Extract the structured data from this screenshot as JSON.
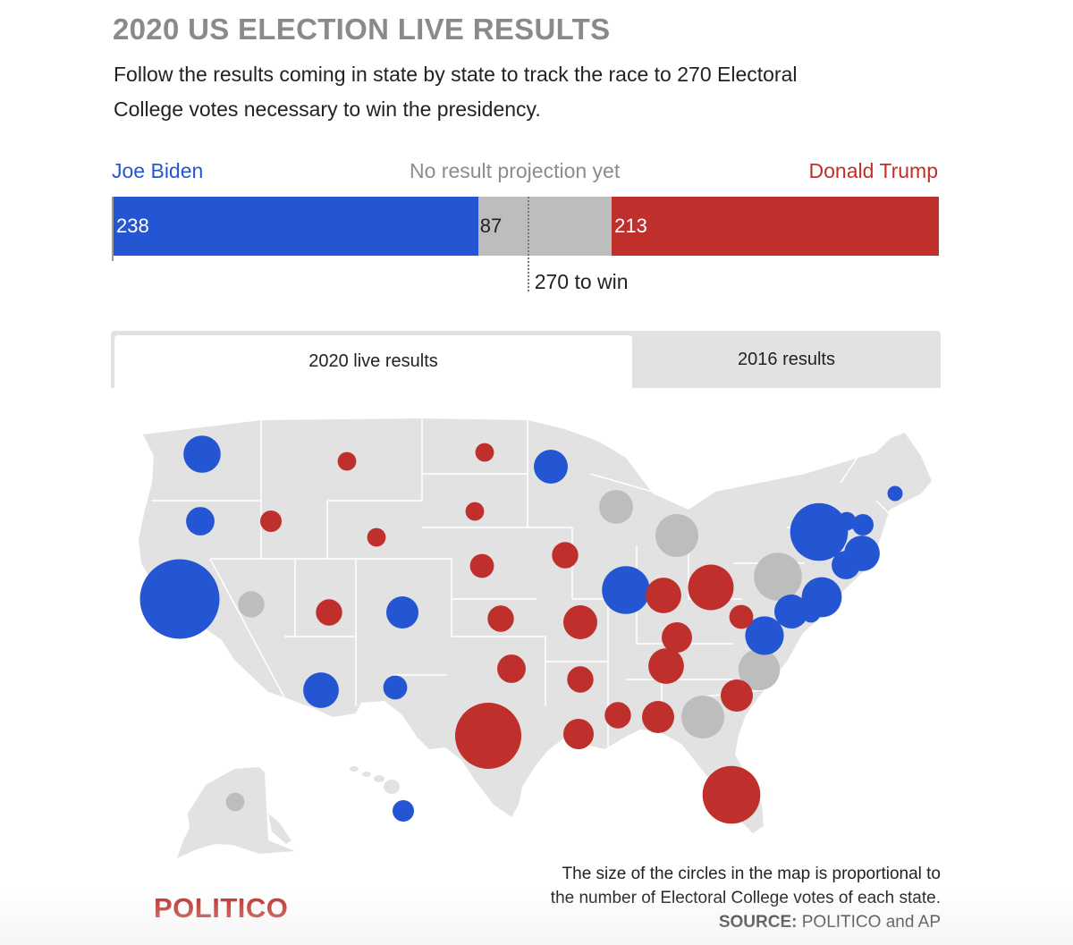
{
  "header": {
    "title": "2020 US ELECTION LIVE RESULTS",
    "subtitle_line1": "Follow the results coming in state by state to track the race to 270 Electoral",
    "subtitle_line2": "College votes necessary to win the presidency."
  },
  "tally": {
    "biden_label": "Joe Biden",
    "pending_label": "No result projection yet",
    "trump_label": "Donald Trump",
    "biden_votes": 238,
    "pending_votes": 87,
    "trump_votes": 213,
    "total_votes": 538,
    "win_threshold": 270,
    "win_label": "270 to win"
  },
  "tabs": {
    "live_label": "2020 live results",
    "past_label": "2016 results"
  },
  "colors": {
    "biden": "#2456d3",
    "trump": "#bf2f2b",
    "pending": "#bdbdbd",
    "land": "#e2e2e2",
    "border": "#ffffff"
  },
  "chart_data": {
    "type": "proportional-symbol-map",
    "title": "2020 US ELECTION LIVE RESULTS",
    "size_encoding": "Electoral College votes",
    "color_encoding": {
      "biden": "Joe Biden",
      "trump": "Donald Trump",
      "pending": "No result projection yet"
    },
    "states": [
      {
        "state": "WA",
        "ev": 12,
        "result": "biden"
      },
      {
        "state": "OR",
        "ev": 7,
        "result": "biden"
      },
      {
        "state": "CA",
        "ev": 55,
        "result": "biden"
      },
      {
        "state": "NV",
        "ev": 6,
        "result": "pending"
      },
      {
        "state": "ID",
        "ev": 4,
        "result": "trump"
      },
      {
        "state": "MT",
        "ev": 3,
        "result": "trump"
      },
      {
        "state": "WY",
        "ev": 3,
        "result": "trump"
      },
      {
        "state": "UT",
        "ev": 6,
        "result": "trump"
      },
      {
        "state": "CO",
        "ev": 9,
        "result": "biden"
      },
      {
        "state": "AZ",
        "ev": 11,
        "result": "biden"
      },
      {
        "state": "NM",
        "ev": 5,
        "result": "biden"
      },
      {
        "state": "ND",
        "ev": 3,
        "result": "trump"
      },
      {
        "state": "SD",
        "ev": 3,
        "result": "trump"
      },
      {
        "state": "NE",
        "ev": 5,
        "result": "trump"
      },
      {
        "state": "KS",
        "ev": 6,
        "result": "trump"
      },
      {
        "state": "OK",
        "ev": 7,
        "result": "trump"
      },
      {
        "state": "TX",
        "ev": 38,
        "result": "trump"
      },
      {
        "state": "MN",
        "ev": 10,
        "result": "biden"
      },
      {
        "state": "IA",
        "ev": 6,
        "result": "trump"
      },
      {
        "state": "MO",
        "ev": 10,
        "result": "trump"
      },
      {
        "state": "AR",
        "ev": 6,
        "result": "trump"
      },
      {
        "state": "LA",
        "ev": 8,
        "result": "trump"
      },
      {
        "state": "WI",
        "ev": 10,
        "result": "pending"
      },
      {
        "state": "IL",
        "ev": 20,
        "result": "biden"
      },
      {
        "state": "MI",
        "ev": 16,
        "result": "pending"
      },
      {
        "state": "IN",
        "ev": 11,
        "result": "trump"
      },
      {
        "state": "OH",
        "ev": 18,
        "result": "trump"
      },
      {
        "state": "KY",
        "ev": 8,
        "result": "trump"
      },
      {
        "state": "TN",
        "ev": 11,
        "result": "trump"
      },
      {
        "state": "MS",
        "ev": 6,
        "result": "trump"
      },
      {
        "state": "AL",
        "ev": 9,
        "result": "trump"
      },
      {
        "state": "GA",
        "ev": 16,
        "result": "pending"
      },
      {
        "state": "FL",
        "ev": 29,
        "result": "trump"
      },
      {
        "state": "SC",
        "ev": 9,
        "result": "trump"
      },
      {
        "state": "NC",
        "ev": 15,
        "result": "pending"
      },
      {
        "state": "VA",
        "ev": 13,
        "result": "biden"
      },
      {
        "state": "WV",
        "ev": 5,
        "result": "trump"
      },
      {
        "state": "PA",
        "ev": 20,
        "result": "pending"
      },
      {
        "state": "NY",
        "ev": 29,
        "result": "biden"
      },
      {
        "state": "NJ",
        "ev": 14,
        "result": "biden"
      },
      {
        "state": "MD",
        "ev": 10,
        "result": "biden"
      },
      {
        "state": "DE",
        "ev": 3,
        "result": "biden"
      },
      {
        "state": "CT",
        "ev": 7,
        "result": "biden"
      },
      {
        "state": "RI",
        "ev": 4,
        "result": "biden"
      },
      {
        "state": "MA",
        "ev": 11,
        "result": "biden"
      },
      {
        "state": "VT",
        "ev": 3,
        "result": "biden"
      },
      {
        "state": "NH",
        "ev": 4,
        "result": "biden"
      },
      {
        "state": "ME",
        "ev": 2,
        "result": "biden"
      },
      {
        "state": "AK",
        "ev": 3,
        "result": "pending"
      },
      {
        "state": "HI",
        "ev": 4,
        "result": "biden"
      }
    ]
  },
  "footer": {
    "note_line1": "The size of the circles in the map is proportional to",
    "note_line2": "the number of Electoral College votes of each state.",
    "source_label": "SOURCE:",
    "source_text": " POLITICO and AP",
    "logo": "POLITICO"
  }
}
